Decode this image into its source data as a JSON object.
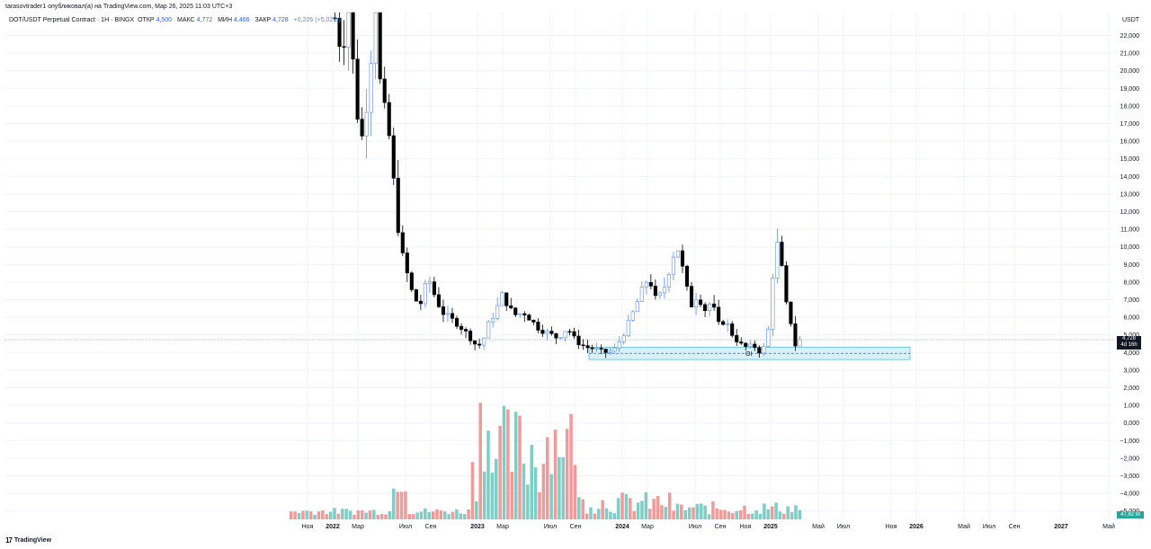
{
  "header": {
    "publisher_line": "tarasovtrader1 опубликовал(а) на TradingView.com, Мар 26, 2025 11:03 UTC+3"
  },
  "legend": {
    "symbol": "DOT/USDT Perpetual Contract · 1Н · BINGX",
    "open_label": "ОТКР",
    "open_value": "4,500",
    "high_label": "МАКС",
    "high_value": "4,772",
    "low_label": "МИН",
    "low_value": "4,466",
    "close_label": "ЗАКР",
    "close_value": "4,728",
    "change": "+0,226 (+5,02%)"
  },
  "price_scale": {
    "unit": "USDT",
    "current_price": "4,728",
    "countdown": "4d 16h",
    "volume_label": "47,82 M"
  },
  "footer": {
    "brand": "TradingView"
  },
  "colors": {
    "up": "#26a69a",
    "down": "#000000",
    "up_body": "#ffffff",
    "up_wick": "#5b8def",
    "vol_up": "#7fcdc4",
    "vol_down": "#f19a9a",
    "zone_fill": "#d8f1f8",
    "zone_border": "#5bc0de",
    "grid": "#f0f3fa"
  },
  "chart_data": {
    "type": "candlestick",
    "y_ticks": [
      "22,000",
      "21,000",
      "20,000",
      "19,000",
      "18,000",
      "17,000",
      "16,000",
      "15,000",
      "14,000",
      "13,000",
      "12,000",
      "11,000",
      "10,000",
      "9,000",
      "8,000",
      "7,000",
      "6,000",
      "5,000",
      "4,000",
      "3,000",
      "2,000",
      "1,000",
      "0,000",
      "−1,000",
      "−2,000",
      "−3,000",
      "−4,000",
      "−5,000"
    ],
    "ylim": [
      -5,
      23
    ],
    "x_ticks": [
      "Ноя",
      "2022",
      "Мар",
      "Июл",
      "Сен",
      "2023",
      "Мар",
      "Июл",
      "Сен",
      "2024",
      "Мар",
      "Июл",
      "Сен",
      "Ноя",
      "2025",
      "Май",
      "Июл",
      "Ноя",
      "2026",
      "Май",
      "Июл",
      "Сен",
      "2027",
      "Май"
    ],
    "x_ticks_bold": [
      "2022",
      "2023",
      "2024",
      "2025",
      "2026",
      "2027"
    ],
    "price_path": [
      [
        0.0,
        23.0
      ],
      [
        0.03,
        20.0
      ],
      [
        0.06,
        22.0
      ],
      [
        0.09,
        17.5
      ],
      [
        0.12,
        15.5
      ],
      [
        0.15,
        19.0
      ],
      [
        0.18,
        14.0
      ],
      [
        0.21,
        17.0
      ],
      [
        0.24,
        20.5
      ],
      [
        0.27,
        18.0
      ],
      [
        0.3,
        18.5
      ],
      [
        0.33,
        16.0
      ],
      [
        0.36,
        13.5
      ],
      [
        0.39,
        11.0
      ],
      [
        0.42,
        9.5
      ],
      [
        0.45,
        8.5
      ],
      [
        0.48,
        7.5
      ],
      [
        0.51,
        7.0
      ],
      [
        0.54,
        7.8
      ],
      [
        0.57,
        6.5
      ],
      [
        0.6,
        7.2
      ],
      [
        0.63,
        6.8
      ],
      [
        0.66,
        8.5
      ],
      [
        0.69,
        7.0
      ],
      [
        0.72,
        6.5
      ],
      [
        0.75,
        7.5
      ],
      [
        0.78,
        6.2
      ],
      [
        0.81,
        6.0
      ],
      [
        0.84,
        5.5
      ],
      [
        0.87,
        6.2
      ],
      [
        0.9,
        5.8
      ],
      [
        0.93,
        5.5
      ],
      [
        0.96,
        5.0
      ],
      [
        1.0,
        4.5
      ]
    ],
    "volume_peaks": "relative bars from late 2021 to Mar 2025",
    "support_zone": {
      "low": 3.6,
      "high": 4.3,
      "label": "OI"
    },
    "last_price": 4.728
  }
}
